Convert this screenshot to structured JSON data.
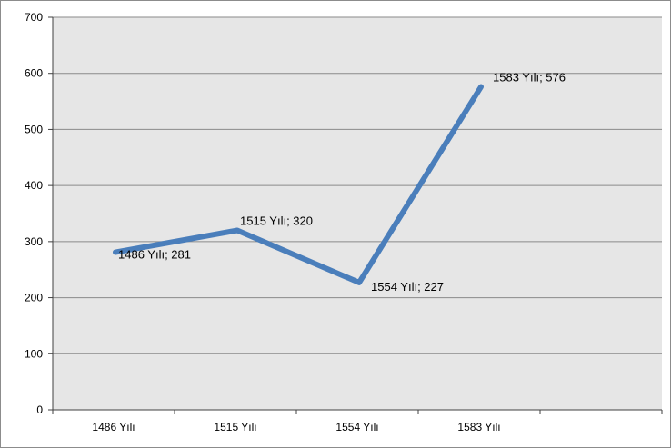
{
  "chart_data": {
    "type": "line",
    "categories": [
      "1486 Yılı",
      "1515 Yılı",
      "1554 Yılı",
      "1583 Yılı"
    ],
    "series": [
      {
        "values": [
          281,
          320,
          227,
          576
        ]
      }
    ],
    "data_labels": [
      "1486 Yılı; 281",
      "1515 Yılı; 320",
      "1554 Yılı; 227",
      "1583 Yılı; 576"
    ],
    "y_ticks": [
      "0",
      "100",
      "200",
      "300",
      "400",
      "500",
      "600",
      "700"
    ],
    "ylim": [
      0,
      700
    ],
    "grid": true,
    "legend": "none",
    "colors": {
      "line": "#4a7ebb",
      "plot_area": "#e6e6e6",
      "gridline": "#8a8a8a",
      "axis": "#404040"
    }
  }
}
